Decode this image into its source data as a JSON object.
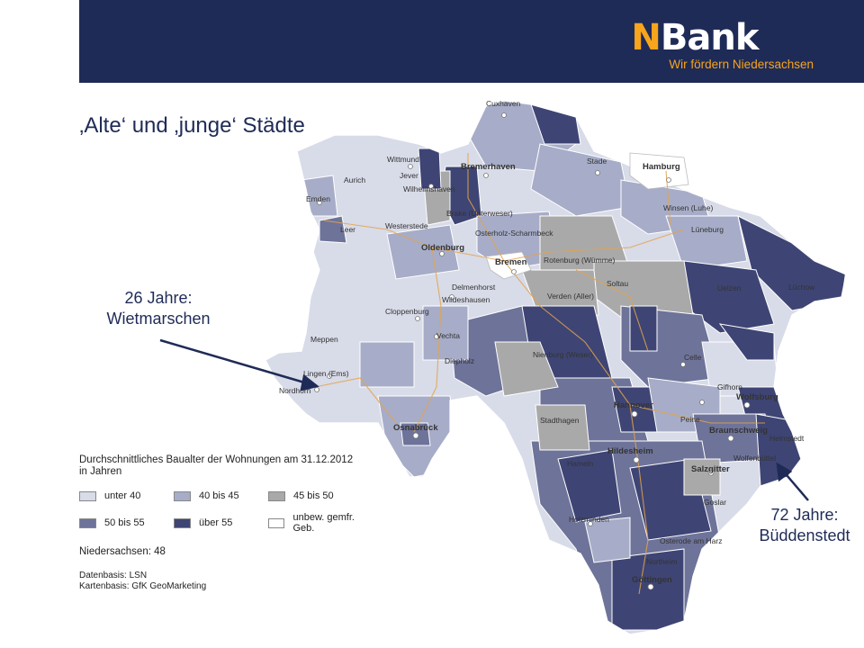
{
  "header": {
    "logo_text": "NBank",
    "logo_tagline": "Wir fördern Niedersachsen",
    "bar_color": "#1f2b57",
    "accent_color": "#f7a51c"
  },
  "title": "‚Alte‘ und ‚junge‘ Städte",
  "map": {
    "city_labels": {
      "cuxhaven": "Cuxhaven",
      "bremerhaven": "Bremerhaven",
      "stade": "Stade",
      "hamburg": "Hamburg",
      "wittmund": "Wittmund",
      "jever": "Jever",
      "aurich": "Aurich",
      "wilhelmshaven": "Wilhelmshaven",
      "emden": "Emden",
      "brake": "Brake (Unterweser)",
      "winsen": "Winsen (Luhe)",
      "leer": "Leer",
      "westerstede": "Westerstede",
      "osterholz": "Osterholz-Scharmbeck",
      "lueneburg": "Lüneburg",
      "oldenburg": "Oldenburg",
      "rotenburg": "Rotenburg (Wümme)",
      "bremen": "Bremen",
      "delmenhorst": "Delmenhorst",
      "soltau": "Soltau",
      "uelzen": "Uelzen",
      "luechow": "Lüchow",
      "wildeshausen": "Wildeshausen",
      "verden": "Verden (Aller)",
      "cloppenburg": "Cloppenburg",
      "meppen": "Meppen",
      "vechta": "Vechta",
      "nienburg": "Nienburg (Weser)",
      "celle": "Celle",
      "diepholz": "Diepholz",
      "lingen": "Lingen (Ems)",
      "gifhorn": "Gifhorn",
      "nordhorn": "Nordhorn",
      "wolfsburg": "Wolfsburg",
      "hannover": "Hannover",
      "osnabrueck": "Osnabrück",
      "stadthagen": "Stadthagen",
      "peine": "Peine",
      "braunschweig": "Braunschweig",
      "helmstedt": "Helmstedt",
      "hildesheim": "Hildesheim",
      "wolfenbuettel": "Wolfenbüttel",
      "hameln": "Hameln",
      "salzgitter": "Salzgitter",
      "goslar": "Goslar",
      "holzminden": "Holzminden",
      "osterode": "Osterode am Harz",
      "northeim": "Northeim",
      "goettingen": "Göttingen"
    }
  },
  "legend": {
    "title_line1": "Durchschnittliches Baualter der Wohnungen am 31.12.2012",
    "title_line2": "in Jahren",
    "items": [
      {
        "label": "unter 40",
        "color": "#d8dbe8"
      },
      {
        "label": "40 bis 45",
        "color": "#a7adc8"
      },
      {
        "label": "45 bis 50",
        "color": "#a9a9a9"
      },
      {
        "label": "50 bis 55",
        "color": "#6e7399"
      },
      {
        "label": "über 55",
        "color": "#3e4574"
      },
      {
        "label": "unbew. gemfr. Geb.",
        "color": "#ffffff"
      }
    ],
    "total": "Niedersachsen: 48"
  },
  "source": {
    "line1": "Datenbasis: LSN",
    "line2": "Kartenbasis: GfK GeoMarketing"
  },
  "callouts": {
    "left_line1": "26 Jahre:",
    "left_line2": "Wietmarschen",
    "right_line1": "72 Jahre:",
    "right_line2": "Büddenstedt"
  }
}
